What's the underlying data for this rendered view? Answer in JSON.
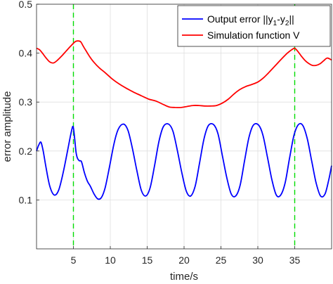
{
  "chart_data": {
    "type": "line",
    "title": "",
    "xlabel": "time/s",
    "ylabel": "error amplitude",
    "xlim": [
      0,
      40
    ],
    "ylim": [
      0,
      0.5
    ],
    "xticks": [
      5,
      10,
      15,
      20,
      25,
      30,
      35
    ],
    "yticks": [
      0.1,
      0.2,
      0.3,
      0.4,
      0.5
    ],
    "grid": true,
    "legend_position": "top-right",
    "legend": [
      {
        "text": "Output error ||y",
        "sub1": "1",
        "mid": "-y",
        "sub2": "2",
        "end": "||",
        "color": "#0000ff"
      },
      {
        "text": "Simulation function V",
        "color": "#ff0000"
      }
    ],
    "vlines": [
      {
        "x": 5,
        "color": "#00dd00",
        "style": "dashed"
      },
      {
        "x": 35,
        "color": "#00dd00",
        "style": "dashed"
      }
    ],
    "series": [
      {
        "name": "Output error ||y1-y2||",
        "color": "#0000ff",
        "x": [
          0,
          0.3,
          0.6,
          0.9,
          1.3,
          1.8,
          2.4,
          3.0,
          3.6,
          4.2,
          4.7,
          4.95,
          5.15,
          5.35,
          5.55,
          5.8,
          6.1,
          6.5,
          6.9,
          7.3,
          7.8,
          8.3,
          8.8,
          9.3,
          9.9,
          10.5,
          11.1,
          11.8,
          12.4,
          13.0,
          13.6,
          14.2,
          14.8,
          15.4,
          16.0,
          16.6,
          17.2,
          17.9,
          18.5,
          19.1,
          19.7,
          20.3,
          20.9,
          21.5,
          22.1,
          22.7,
          23.3,
          24.0,
          24.6,
          25.2,
          25.8,
          26.4,
          27.0,
          27.6,
          28.2,
          28.8,
          29.4,
          30.1,
          30.7,
          31.3,
          31.9,
          32.5,
          33.1,
          33.7,
          34.3,
          34.9,
          35.5,
          36.1,
          36.7,
          37.3,
          37.9,
          38.5,
          39.1,
          39.6,
          40.0
        ],
        "y": [
          0.2,
          0.212,
          0.218,
          0.2,
          0.165,
          0.128,
          0.11,
          0.12,
          0.155,
          0.2,
          0.238,
          0.25,
          0.228,
          0.198,
          0.185,
          0.18,
          0.178,
          0.155,
          0.138,
          0.128,
          0.112,
          0.102,
          0.105,
          0.125,
          0.168,
          0.215,
          0.245,
          0.255,
          0.242,
          0.205,
          0.16,
          0.12,
          0.108,
          0.125,
          0.17,
          0.22,
          0.25,
          0.255,
          0.24,
          0.2,
          0.155,
          0.118,
          0.108,
          0.128,
          0.175,
          0.225,
          0.252,
          0.254,
          0.235,
          0.19,
          0.145,
          0.112,
          0.108,
          0.13,
          0.18,
          0.228,
          0.253,
          0.253,
          0.232,
          0.188,
          0.142,
          0.11,
          0.11,
          0.135,
          0.185,
          0.232,
          0.254,
          0.252,
          0.225,
          0.18,
          0.135,
          0.108,
          0.112,
          0.14,
          0.17
        ]
      },
      {
        "name": "Simulation function V",
        "color": "#ff0000",
        "x": [
          0,
          0.4,
          0.8,
          1.3,
          1.8,
          2.3,
          2.8,
          3.4,
          4.0,
          4.6,
          5.2,
          5.6,
          6.0,
          6.3,
          6.7,
          7.2,
          7.8,
          8.5,
          9.3,
          10.2,
          11.2,
          12.2,
          13.2,
          14.2,
          15.2,
          16.2,
          17.2,
          18.0,
          18.8,
          19.6,
          20.4,
          21.2,
          22.0,
          22.8,
          23.6,
          24.4,
          25.2,
          26.0,
          26.8,
          27.6,
          28.4,
          29.2,
          30.0,
          30.8,
          31.6,
          32.4,
          33.2,
          34.0,
          34.6,
          35.0,
          35.4,
          35.9,
          36.4,
          36.9,
          37.4,
          37.9,
          38.4,
          38.9,
          39.4,
          40.0
        ],
        "y": [
          0.41,
          0.407,
          0.4,
          0.39,
          0.382,
          0.38,
          0.385,
          0.394,
          0.404,
          0.414,
          0.423,
          0.425,
          0.423,
          0.415,
          0.405,
          0.393,
          0.381,
          0.37,
          0.36,
          0.348,
          0.337,
          0.328,
          0.32,
          0.313,
          0.306,
          0.302,
          0.295,
          0.29,
          0.289,
          0.289,
          0.291,
          0.293,
          0.293,
          0.292,
          0.292,
          0.293,
          0.298,
          0.306,
          0.317,
          0.326,
          0.332,
          0.336,
          0.341,
          0.35,
          0.362,
          0.375,
          0.388,
          0.4,
          0.407,
          0.41,
          0.404,
          0.394,
          0.385,
          0.379,
          0.375,
          0.375,
          0.378,
          0.384,
          0.39,
          0.386
        ]
      }
    ]
  }
}
